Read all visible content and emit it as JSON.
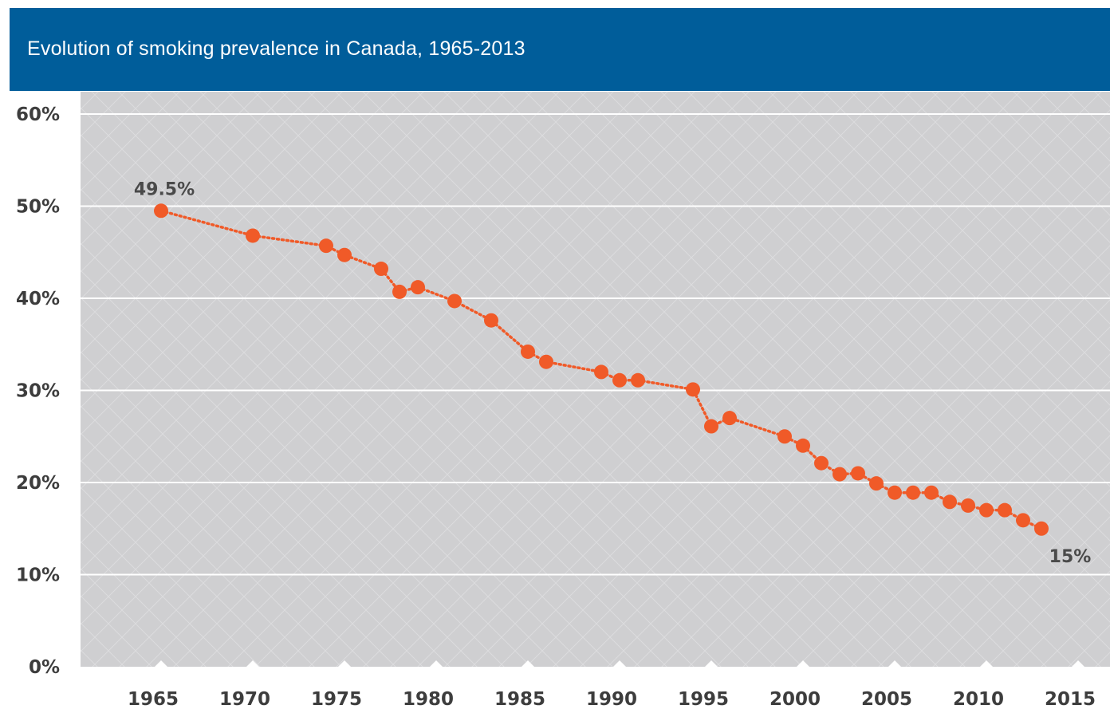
{
  "header": {
    "title": "Evolution of smoking prevalence in Canada, 1965-2013"
  },
  "colors": {
    "header_bg": "#005d9a",
    "plot_bg": "#cfcfd1",
    "gridline": "#ffffff",
    "series": "#f05a28",
    "tick_text": "#3d3d3d"
  },
  "chart_data": {
    "type": "line",
    "title": "Evolution of smoking prevalence in Canada, 1965-2013",
    "xlabel": "",
    "ylabel": "",
    "xlim": [
      1959.5,
      2015.5
    ],
    "ylim": [
      0,
      60
    ],
    "x_ticks": [
      1965,
      1970,
      1975,
      1980,
      1985,
      1990,
      1995,
      2000,
      2005,
      2010,
      2015
    ],
    "y_ticks": [
      0,
      10,
      20,
      30,
      40,
      50,
      60
    ],
    "y_tick_labels": [
      "0%",
      "10%",
      "20%",
      "30%",
      "40%",
      "50%",
      "60%"
    ],
    "grid": true,
    "series": [
      {
        "style": "dotted line with circle markers",
        "x": [
          1965,
          1970,
          1974,
          1975,
          1977,
          1978,
          1979,
          1981,
          1983,
          1985,
          1986,
          1989,
          1990,
          1991,
          1994,
          1995,
          1996,
          1999,
          2000,
          2001,
          2002,
          2003,
          2004,
          2005,
          2006,
          2007,
          2008,
          2009,
          2010,
          2011,
          2012,
          2013
        ],
        "y": [
          49.5,
          46.8,
          45.7,
          44.7,
          43.2,
          40.7,
          41.2,
          39.7,
          37.6,
          34.2,
          33.1,
          32.0,
          31.1,
          31.1,
          30.1,
          26.1,
          27.0,
          25.0,
          24.0,
          22.1,
          20.9,
          21.0,
          19.9,
          18.9,
          18.9,
          18.9,
          17.9,
          17.5,
          17.0,
          17.0,
          15.9,
          15.0
        ]
      }
    ],
    "annotations": [
      {
        "text": "49.5%",
        "x": 1965,
        "y": 49.5
      },
      {
        "text": "15%",
        "x": 2013,
        "y": 15.0
      }
    ]
  }
}
